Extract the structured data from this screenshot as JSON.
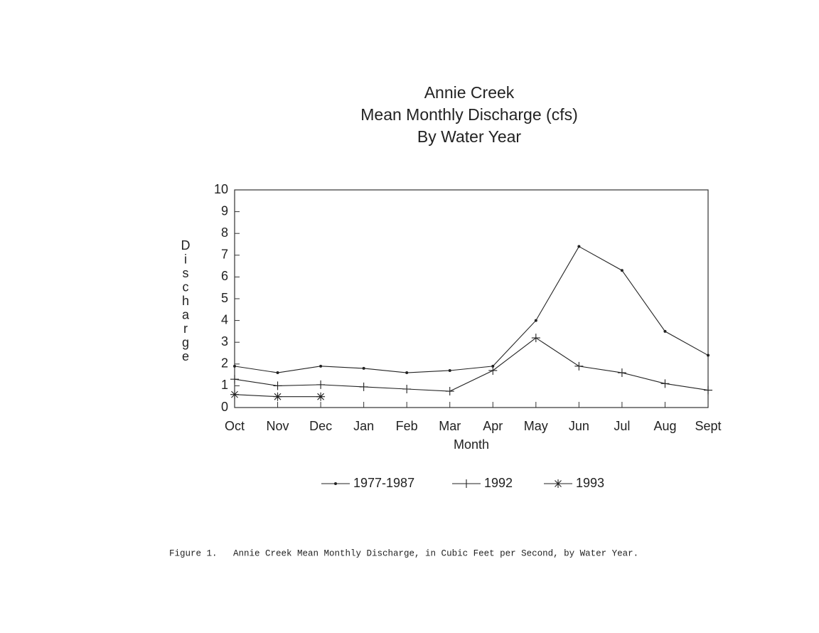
{
  "chart_data": {
    "type": "line",
    "title": [
      "Annie Creek",
      "Mean Monthly Discharge (cfs)",
      "By Water Year"
    ],
    "xlabel": "Month",
    "ylabel": "Discharge",
    "categories": [
      "Oct",
      "Nov",
      "Dec",
      "Jan",
      "Feb",
      "Mar",
      "Apr",
      "May",
      "Jun",
      "Jul",
      "Aug",
      "Sept"
    ],
    "series": [
      {
        "name": "1977-1987",
        "color": "#222222",
        "marker": "dot",
        "values": [
          1.9,
          1.6,
          1.9,
          1.8,
          1.6,
          1.7,
          1.9,
          4.0,
          7.4,
          6.3,
          3.5,
          2.4
        ]
      },
      {
        "name": "1992",
        "color": "#222222",
        "marker": "plus",
        "values": [
          1.3,
          1.0,
          1.05,
          0.95,
          0.85,
          0.75,
          1.7,
          3.2,
          1.9,
          1.6,
          1.1,
          0.8
        ]
      },
      {
        "name": "1993",
        "color": "#222222",
        "marker": "star",
        "values": [
          0.6,
          0.5,
          0.5,
          null,
          null,
          null,
          null,
          null,
          null,
          null,
          null,
          null
        ]
      }
    ],
    "ylim": [
      0,
      10
    ],
    "yticks": [
      0,
      1,
      2,
      3,
      4,
      5,
      6,
      7,
      8,
      9,
      10
    ],
    "grid": false,
    "legend": "bottom"
  },
  "caption": "Figure 1.   Annie Creek Mean Monthly Discharge, in Cubic Feet per Second, by Water Year."
}
